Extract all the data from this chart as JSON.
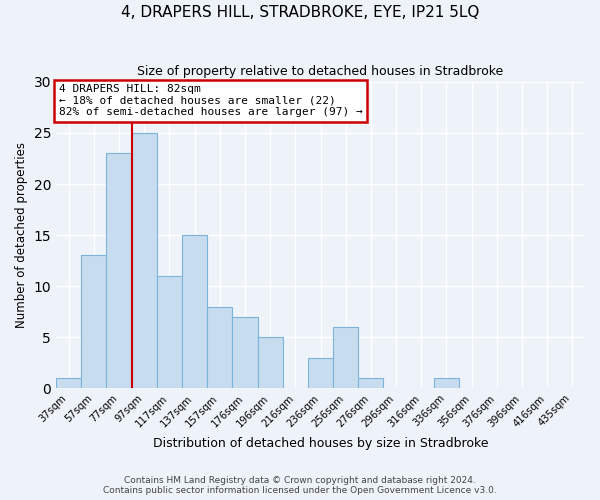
{
  "title": "4, DRAPERS HILL, STRADBROKE, EYE, IP21 5LQ",
  "subtitle": "Size of property relative to detached houses in Stradbroke",
  "xlabel": "Distribution of detached houses by size in Stradbroke",
  "ylabel": "Number of detached properties",
  "bar_labels": [
    "37sqm",
    "57sqm",
    "77sqm",
    "97sqm",
    "117sqm",
    "137sqm",
    "157sqm",
    "176sqm",
    "196sqm",
    "216sqm",
    "236sqm",
    "256sqm",
    "276sqm",
    "296sqm",
    "316sqm",
    "336sqm",
    "356sqm",
    "376sqm",
    "396sqm",
    "416sqm",
    "435sqm"
  ],
  "bar_heights": [
    1,
    13,
    23,
    25,
    11,
    15,
    8,
    7,
    5,
    0,
    3,
    6,
    1,
    0,
    0,
    1,
    0,
    0,
    0,
    0,
    0
  ],
  "bar_color": "#c8dcf0",
  "bar_edgecolor": "#7ab4d8",
  "property_line_index": 2,
  "annotation_title": "4 DRAPERS HILL: 82sqm",
  "annotation_line1": "← 18% of detached houses are smaller (22)",
  "annotation_line2": "82% of semi-detached houses are larger (97) →",
  "annotation_box_color": "#ffffff",
  "annotation_box_edgecolor": "#cc0000",
  "red_line_color": "#cc0000",
  "ylim": [
    0,
    30
  ],
  "yticks": [
    0,
    5,
    10,
    15,
    20,
    25,
    30
  ],
  "footer_line1": "Contains HM Land Registry data © Crown copyright and database right 2024.",
  "footer_line2": "Contains public sector information licensed under the Open Government Licence v3.0.",
  "background_color": "#eef2f9",
  "grid_color": "#ffffff"
}
